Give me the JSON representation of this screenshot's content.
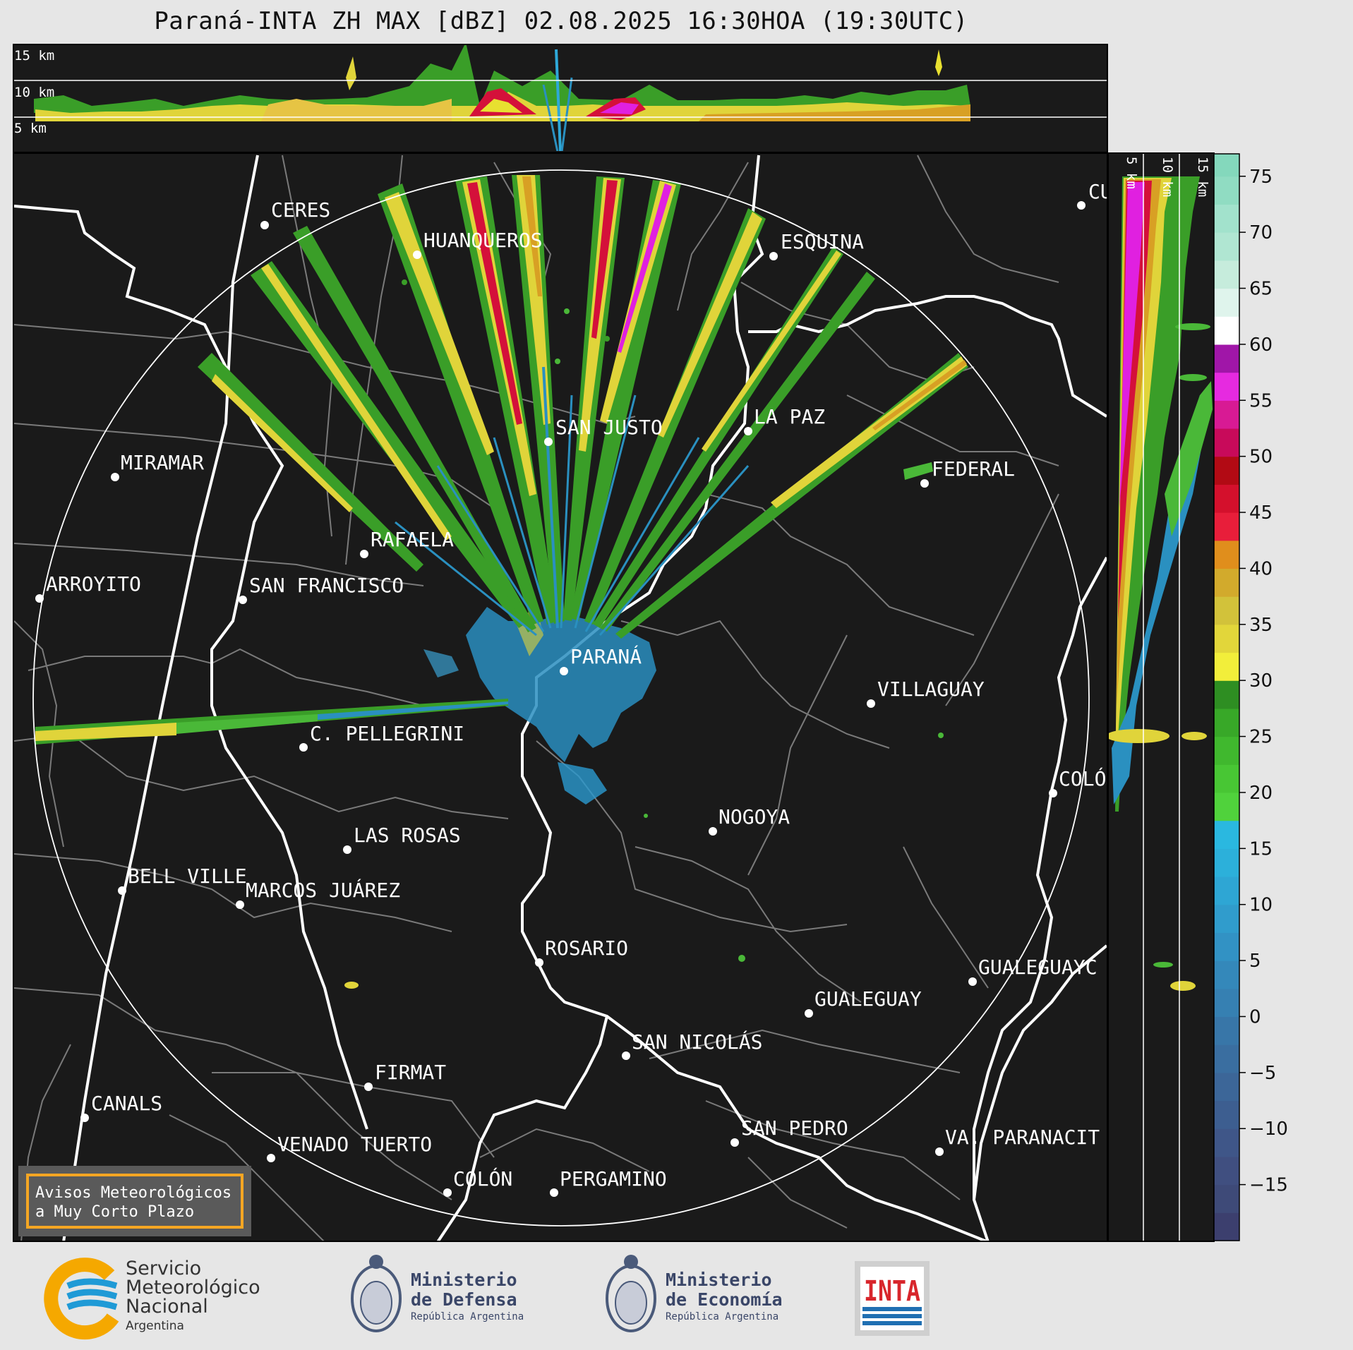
{
  "title": "Paraná-INTA ZH MAX [dBZ] 02.08.2025 16:30HOA (19:30UTC)",
  "top_section": {
    "heights": [
      "15 km",
      "10 km",
      "5 km"
    ]
  },
  "side_section": {
    "heights": [
      "5 km",
      "10 km",
      "15 km"
    ]
  },
  "colorbar": {
    "ticks": [
      "75",
      "70",
      "65",
      "60",
      "55",
      "50",
      "45",
      "40",
      "35",
      "30",
      "25",
      "20",
      "15",
      "10",
      "5",
      "0",
      "−5",
      "−10",
      "−15"
    ],
    "range": [
      -20,
      77
    ]
  },
  "radar": {
    "name": "PARANÁ"
  },
  "cities": [
    {
      "name": "CERES"
    },
    {
      "name": "HUANQUEROS"
    },
    {
      "name": "ESQUINA"
    },
    {
      "name": "CU"
    },
    {
      "name": "SAN JUSTO"
    },
    {
      "name": "LA PAZ"
    },
    {
      "name": "MIRAMAR"
    },
    {
      "name": "FEDERAL"
    },
    {
      "name": "RAFAELA"
    },
    {
      "name": "ARROYITO"
    },
    {
      "name": "SAN FRANCISCO"
    },
    {
      "name": "VILLAGUAY"
    },
    {
      "name": "C. PELLEGRINI"
    },
    {
      "name": "COLÓ"
    },
    {
      "name": "NOGOYA"
    },
    {
      "name": "LAS ROSAS"
    },
    {
      "name": "BELL VILLE"
    },
    {
      "name": "MARCOS JUÁREZ"
    },
    {
      "name": "ROSARIO"
    },
    {
      "name": "GUALEGUAYC"
    },
    {
      "name": "GUALEGUAY"
    },
    {
      "name": "SAN NICOLÁS"
    },
    {
      "name": "FIRMAT"
    },
    {
      "name": "CANALS"
    },
    {
      "name": "SAN PEDRO"
    },
    {
      "name": "VENADO TUERTO"
    },
    {
      "name": "VA. PARANACIT"
    },
    {
      "name": "COLÓN"
    },
    {
      "name": "PERGAMINO"
    }
  ],
  "warning_box": {
    "line1": "Avisos Meteorológicos",
    "line2": "a Muy Corto Plazo"
  },
  "logos": {
    "smn": {
      "line1": "Servicio",
      "line2": "Meteorológico",
      "line3": "Nacional",
      "line4": "Argentina"
    },
    "defensa": {
      "line1": "Ministerio",
      "line2": "de Defensa",
      "line3": "República Argentina"
    },
    "economia": {
      "line1": "Ministerio",
      "line2": "de Economía",
      "line3": "República Argentina"
    },
    "inta": {
      "text": "INTA"
    }
  }
}
